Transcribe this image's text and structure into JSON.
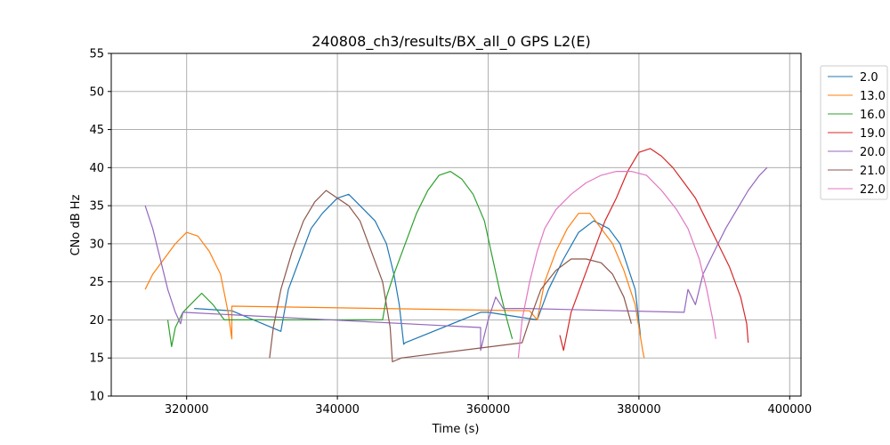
{
  "chart_data": {
    "type": "line",
    "title": "240808_ch3/results/BX_all_0 GPS L2(E)",
    "xlabel": "Time (s)",
    "ylabel": "CNo dB Hz",
    "xlim": [
      310000,
      401500
    ],
    "ylim": [
      10,
      55
    ],
    "xticks": [
      320000,
      340000,
      360000,
      380000,
      400000
    ],
    "xtick_labels": [
      "320000",
      "340000",
      "360000",
      "380000",
      "400000"
    ],
    "yticks": [
      10,
      15,
      20,
      25,
      30,
      35,
      40,
      45,
      50,
      55
    ],
    "ytick_labels": [
      "10",
      "15",
      "20",
      "25",
      "30",
      "35",
      "40",
      "45",
      "50",
      "55"
    ],
    "grid": true,
    "legend_position": "outside-top-right",
    "series": [
      {
        "name": "2.0",
        "color": "#1f77b4",
        "points": [
          [
            321000,
            21.5
          ],
          [
            326000,
            21.2
          ],
          [
            332500,
            18.5
          ],
          [
            333500,
            24
          ],
          [
            335000,
            28
          ],
          [
            336500,
            32
          ],
          [
            338000,
            34
          ],
          [
            340000,
            36
          ],
          [
            341500,
            36.5
          ],
          [
            343000,
            35
          ],
          [
            345000,
            33
          ],
          [
            346500,
            30
          ],
          [
            347500,
            26
          ],
          [
            348200,
            22
          ],
          [
            348800,
            16.8
          ],
          [
            349000,
            17
          ],
          [
            359000,
            21
          ],
          [
            360000,
            21
          ],
          [
            366500,
            20
          ],
          [
            368000,
            24
          ],
          [
            370000,
            28
          ],
          [
            372000,
            31.5
          ],
          [
            374000,
            33
          ],
          [
            376000,
            32
          ],
          [
            377500,
            30
          ],
          [
            378500,
            27
          ],
          [
            379500,
            24
          ],
          [
            380200,
            18
          ]
        ]
      },
      {
        "name": "13.0",
        "color": "#ff7f0e",
        "points": [
          [
            314500,
            24
          ],
          [
            315500,
            26
          ],
          [
            317000,
            28
          ],
          [
            318500,
            30
          ],
          [
            320000,
            31.5
          ],
          [
            321500,
            31
          ],
          [
            323000,
            29
          ],
          [
            324500,
            26
          ],
          [
            325500,
            21
          ],
          [
            326000,
            17.5
          ],
          [
            326000,
            21.8
          ],
          [
            365500,
            21.2
          ],
          [
            366500,
            20
          ],
          [
            367500,
            25
          ],
          [
            369000,
            29
          ],
          [
            370500,
            32
          ],
          [
            372000,
            34
          ],
          [
            373500,
            34
          ],
          [
            375000,
            32
          ],
          [
            376500,
            30
          ],
          [
            378000,
            26.5
          ],
          [
            379500,
            22
          ],
          [
            380500,
            16
          ],
          [
            380700,
            15
          ]
        ]
      },
      {
        "name": "16.0",
        "color": "#2ca02c",
        "points": [
          [
            317500,
            20
          ],
          [
            318000,
            16.5
          ],
          [
            318500,
            19
          ],
          [
            319500,
            21
          ],
          [
            320500,
            22
          ],
          [
            322000,
            23.5
          ],
          [
            323500,
            22
          ],
          [
            325000,
            20
          ],
          [
            326000,
            20
          ],
          [
            346000,
            20
          ],
          [
            346500,
            23
          ],
          [
            347500,
            26
          ],
          [
            349000,
            30
          ],
          [
            350500,
            34
          ],
          [
            352000,
            37
          ],
          [
            353500,
            39
          ],
          [
            355000,
            39.5
          ],
          [
            356500,
            38.5
          ],
          [
            358000,
            36.5
          ],
          [
            359500,
            33
          ],
          [
            360500,
            28.5
          ],
          [
            361500,
            24
          ],
          [
            362500,
            20
          ],
          [
            363200,
            17.5
          ]
        ]
      },
      {
        "name": "19.0",
        "color": "#d62728",
        "points": [
          [
            369500,
            18
          ],
          [
            370000,
            16
          ],
          [
            371000,
            21
          ],
          [
            372500,
            25
          ],
          [
            374000,
            29
          ],
          [
            375500,
            33
          ],
          [
            377000,
            36
          ],
          [
            378500,
            39.5
          ],
          [
            380000,
            42
          ],
          [
            381500,
            42.5
          ],
          [
            383000,
            41.5
          ],
          [
            384500,
            40
          ],
          [
            386000,
            38
          ],
          [
            387500,
            36
          ],
          [
            389000,
            33
          ],
          [
            390500,
            30
          ],
          [
            392000,
            27
          ],
          [
            393500,
            23
          ],
          [
            394300,
            19.5
          ],
          [
            394500,
            17
          ]
        ]
      },
      {
        "name": "20.0",
        "color": "#9467bd",
        "points": [
          [
            314500,
            35
          ],
          [
            315500,
            32
          ],
          [
            316500,
            28
          ],
          [
            317500,
            24
          ],
          [
            318500,
            21
          ],
          [
            319200,
            19.5
          ],
          [
            319500,
            21
          ],
          [
            359000,
            19
          ],
          [
            359000,
            16
          ],
          [
            360000,
            20
          ],
          [
            361000,
            23
          ],
          [
            362000,
            21.5
          ],
          [
            365000,
            21.5
          ],
          [
            386000,
            21
          ],
          [
            386500,
            24
          ],
          [
            387500,
            22
          ],
          [
            388500,
            26
          ],
          [
            390000,
            29
          ],
          [
            391500,
            32
          ],
          [
            393000,
            34.5
          ],
          [
            394500,
            37
          ],
          [
            396000,
            39
          ],
          [
            397000,
            40
          ]
        ]
      },
      {
        "name": "21.0",
        "color": "#8c564b",
        "points": [
          [
            331000,
            15
          ],
          [
            331500,
            19
          ],
          [
            332500,
            24
          ],
          [
            334000,
            29
          ],
          [
            335500,
            33
          ],
          [
            337000,
            35.5
          ],
          [
            338500,
            37
          ],
          [
            340000,
            36
          ],
          [
            341500,
            35
          ],
          [
            343000,
            33
          ],
          [
            344500,
            29
          ],
          [
            346000,
            25
          ],
          [
            347000,
            19
          ],
          [
            347300,
            14.5
          ],
          [
            348500,
            15
          ],
          [
            364500,
            17
          ],
          [
            365500,
            20
          ],
          [
            367000,
            24
          ],
          [
            369000,
            26.5
          ],
          [
            371000,
            28
          ],
          [
            373000,
            28
          ],
          [
            375000,
            27.5
          ],
          [
            376500,
            26
          ],
          [
            378000,
            23
          ],
          [
            379000,
            19.5
          ]
        ]
      },
      {
        "name": "22.0",
        "color": "#e377c2",
        "points": [
          [
            364000,
            15
          ],
          [
            364500,
            20
          ],
          [
            365500,
            25
          ],
          [
            366500,
            29
          ],
          [
            367500,
            32
          ],
          [
            369000,
            34.5
          ],
          [
            371000,
            36.5
          ],
          [
            373000,
            38
          ],
          [
            375000,
            39
          ],
          [
            377000,
            39.5
          ],
          [
            379000,
            39.5
          ],
          [
            381000,
            39
          ],
          [
            383000,
            37
          ],
          [
            385000,
            34.5
          ],
          [
            386500,
            32
          ],
          [
            388000,
            28
          ],
          [
            389000,
            24
          ],
          [
            389800,
            20
          ],
          [
            390200,
            17.5
          ]
        ]
      }
    ]
  }
}
